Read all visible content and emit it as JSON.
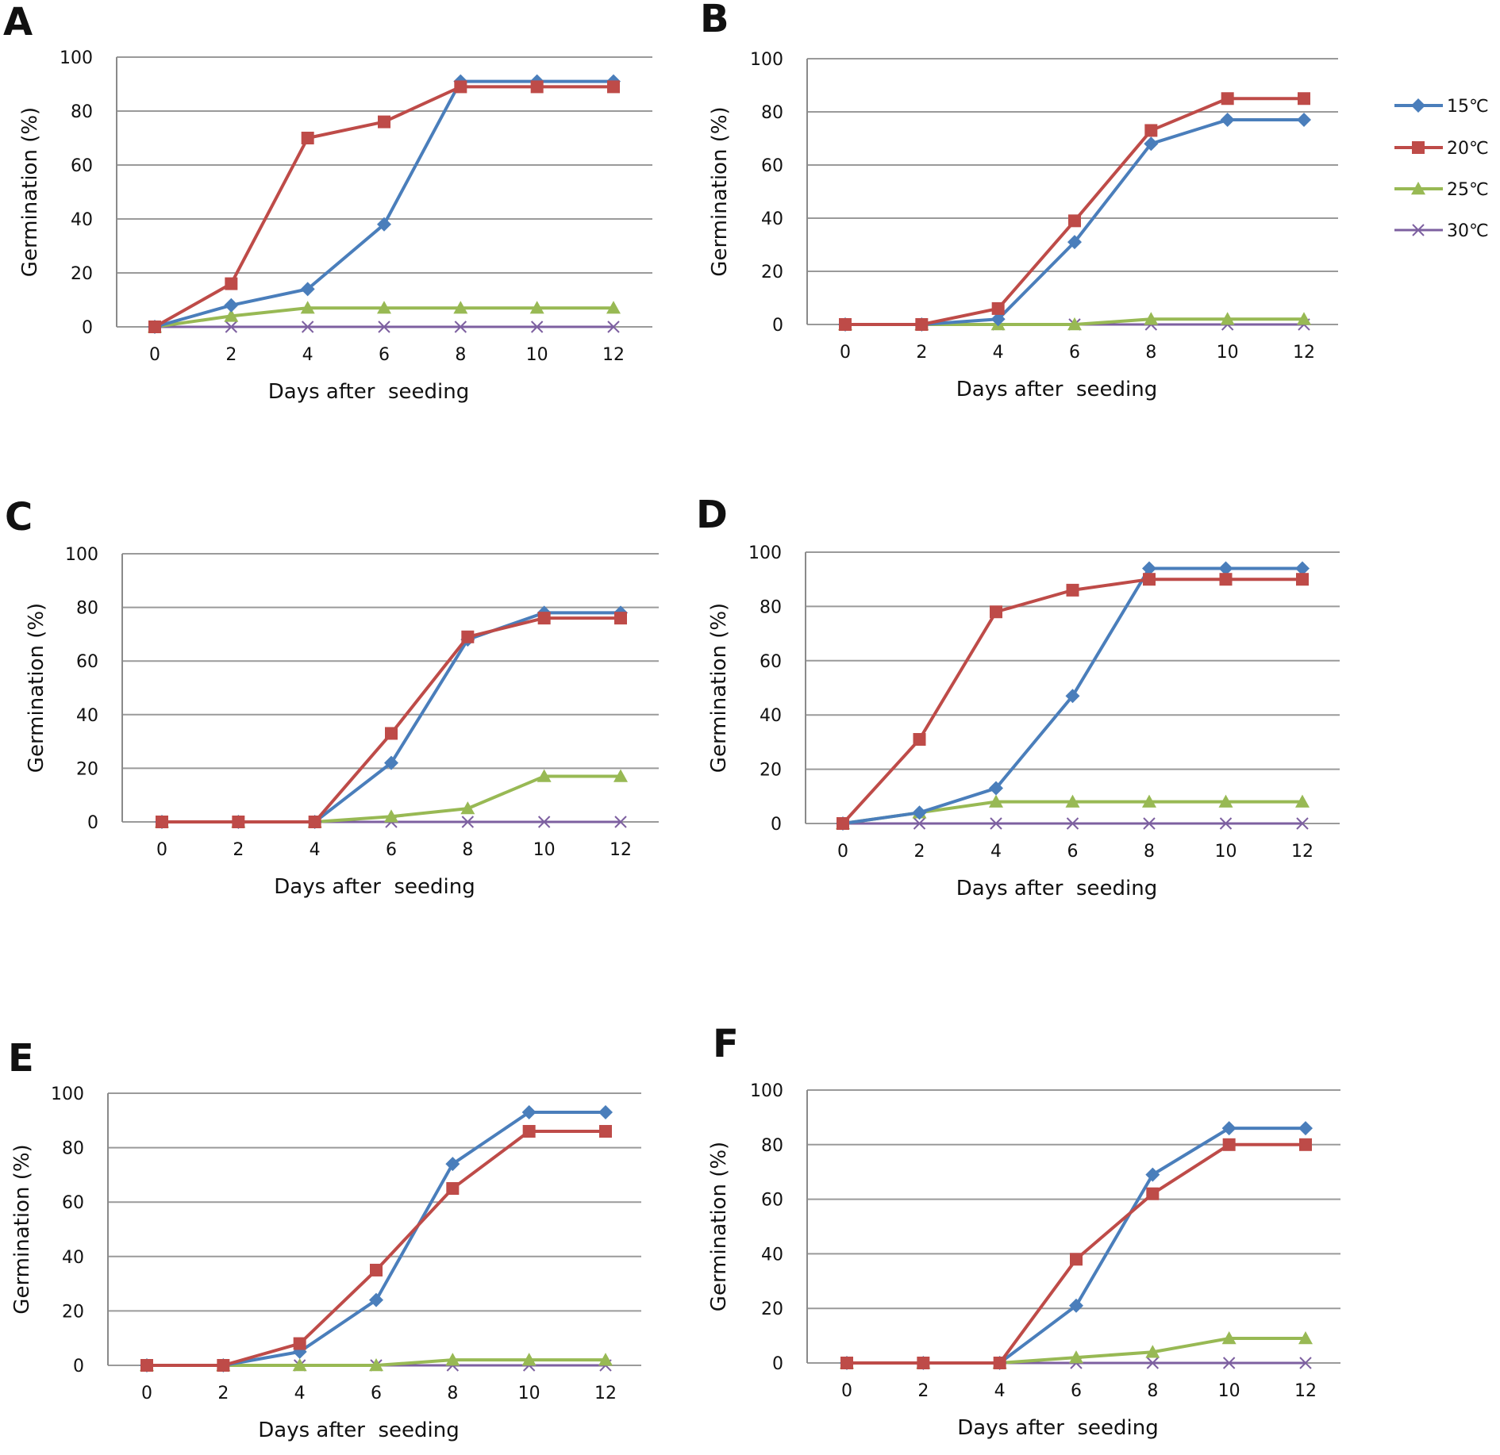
{
  "chart_data": [
    {
      "type": "line",
      "panel": "A",
      "xlabel": "Days after  seeding",
      "ylabel": "Germination (%)",
      "x": [
        0,
        2,
        4,
        6,
        8,
        10,
        12
      ],
      "ylim": [
        0,
        100
      ],
      "yticks": [
        0,
        20,
        40,
        60,
        80,
        100
      ],
      "series": [
        {
          "name": "15℃",
          "values": [
            0,
            8,
            14,
            38,
            91,
            91,
            91
          ]
        },
        {
          "name": "20℃",
          "values": [
            0,
            16,
            70,
            76,
            89,
            89,
            89
          ]
        },
        {
          "name": "25℃",
          "values": [
            0,
            4,
            7,
            7,
            7,
            7,
            7
          ]
        },
        {
          "name": "30℃",
          "values": [
            0,
            0,
            0,
            0,
            0,
            0,
            0
          ]
        }
      ]
    },
    {
      "type": "line",
      "panel": "B",
      "xlabel": "Days after  seeding",
      "ylabel": "Germination (%)",
      "x": [
        0,
        2,
        4,
        6,
        8,
        10,
        12
      ],
      "ylim": [
        0,
        100
      ],
      "yticks": [
        0,
        20,
        40,
        60,
        80,
        100
      ],
      "series": [
        {
          "name": "15℃",
          "values": [
            0,
            0,
            2,
            31,
            68,
            77,
            77
          ]
        },
        {
          "name": "20℃",
          "values": [
            0,
            0,
            6,
            39,
            73,
            85,
            85
          ]
        },
        {
          "name": "25℃",
          "values": [
            0,
            0,
            0,
            0,
            2,
            2,
            2
          ]
        },
        {
          "name": "30℃",
          "values": [
            0,
            0,
            0,
            0,
            0,
            0,
            0
          ]
        }
      ]
    },
    {
      "type": "line",
      "panel": "C",
      "xlabel": "Days after  seeding",
      "ylabel": "Germination (%)",
      "x": [
        0,
        2,
        4,
        6,
        8,
        10,
        12
      ],
      "ylim": [
        0,
        100
      ],
      "yticks": [
        0,
        20,
        40,
        60,
        80,
        100
      ],
      "series": [
        {
          "name": "15℃",
          "values": [
            0,
            0,
            0,
            22,
            68,
            78,
            78
          ]
        },
        {
          "name": "20℃",
          "values": [
            0,
            0,
            0,
            33,
            69,
            76,
            76
          ]
        },
        {
          "name": "25℃",
          "values": [
            0,
            0,
            0,
            2,
            5,
            17,
            17
          ]
        },
        {
          "name": "30℃",
          "values": [
            0,
            0,
            0,
            0,
            0,
            0,
            0
          ]
        }
      ]
    },
    {
      "type": "line",
      "panel": "D",
      "xlabel": "Days after  seeding",
      "ylabel": "Germination (%)",
      "x": [
        0,
        2,
        4,
        6,
        8,
        10,
        12
      ],
      "ylim": [
        0,
        100
      ],
      "yticks": [
        0,
        20,
        40,
        60,
        80,
        100
      ],
      "series": [
        {
          "name": "15℃",
          "values": [
            0,
            4,
            13,
            47,
            94,
            94,
            94
          ]
        },
        {
          "name": "20℃",
          "values": [
            0,
            31,
            78,
            86,
            90,
            90,
            90
          ]
        },
        {
          "name": "25℃",
          "values": [
            0,
            4,
            8,
            8,
            8,
            8,
            8
          ]
        },
        {
          "name": "30℃",
          "values": [
            0,
            0,
            0,
            0,
            0,
            0,
            0
          ]
        }
      ]
    },
    {
      "type": "line",
      "panel": "E",
      "xlabel": "Days after  seeding",
      "ylabel": "Germination (%)",
      "x": [
        0,
        2,
        4,
        6,
        8,
        10,
        12
      ],
      "ylim": [
        0,
        100
      ],
      "yticks": [
        0,
        20,
        40,
        60,
        80,
        100
      ],
      "series": [
        {
          "name": "15℃",
          "values": [
            0,
            0,
            5,
            24,
            74,
            93,
            93
          ]
        },
        {
          "name": "20℃",
          "values": [
            0,
            0,
            8,
            35,
            65,
            86,
            86
          ]
        },
        {
          "name": "25℃",
          "values": [
            0,
            0,
            0,
            0,
            2,
            2,
            2
          ]
        },
        {
          "name": "30℃",
          "values": [
            0,
            0,
            0,
            0,
            0,
            0,
            0
          ]
        }
      ]
    },
    {
      "type": "line",
      "panel": "F",
      "xlabel": "Days after  seeding",
      "ylabel": "Germination (%)",
      "x": [
        0,
        2,
        4,
        6,
        8,
        10,
        12
      ],
      "ylim": [
        0,
        100
      ],
      "yticks": [
        0,
        20,
        40,
        60,
        80,
        100
      ],
      "series": [
        {
          "name": "15℃",
          "values": [
            0,
            0,
            0,
            21,
            69,
            86,
            86
          ]
        },
        {
          "name": "20℃",
          "values": [
            0,
            0,
            0,
            38,
            62,
            80,
            80
          ]
        },
        {
          "name": "25℃",
          "values": [
            0,
            0,
            0,
            2,
            4,
            9,
            9
          ]
        },
        {
          "name": "30℃",
          "values": [
            0,
            0,
            0,
            0,
            0,
            0,
            0
          ]
        }
      ]
    }
  ],
  "legend": {
    "items": [
      {
        "name": "15℃",
        "color": "#4a7ebb",
        "marker": "diamond"
      },
      {
        "name": "20℃",
        "color": "#be4b48",
        "marker": "square"
      },
      {
        "name": "25℃",
        "color": "#98b954",
        "marker": "triangle"
      },
      {
        "name": "30℃",
        "color": "#7d60a0",
        "marker": "x"
      }
    ]
  }
}
